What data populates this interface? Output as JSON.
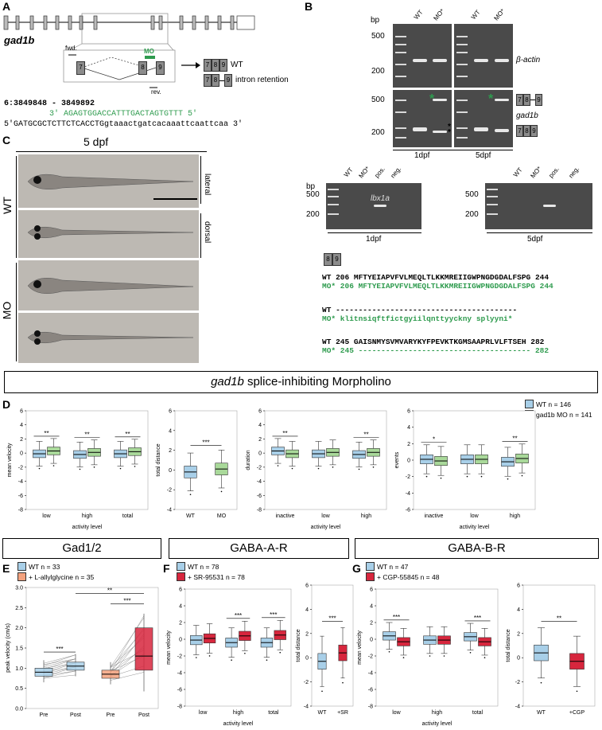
{
  "panels": {
    "A": "A",
    "B": "B",
    "C": "C",
    "D": "D",
    "E": "E",
    "F": "F",
    "G": "G"
  },
  "panelA": {
    "gene": "gad1b",
    "fwd": "fwd.",
    "rev": "rev.",
    "mo": "MO",
    "exon7": "7",
    "exon8": "8",
    "exon9": "9",
    "wt_label": "WT",
    "intron_label": "intron retention",
    "coords": "6:3849848 - 3849892",
    "mo_seq": "3' AGAGTGGACCATTTGACTAGTGTTT 5'",
    "genomic_seq": "5'GATGCGCTCTTCTCACCTGgtaaactgatcacaaattcaattcaa 3'"
  },
  "panelB": {
    "bp": "bp",
    "lanes": [
      "WT",
      "MO*",
      "WT",
      "MO*"
    ],
    "ladder_marks": [
      "500",
      "200",
      "500",
      "200"
    ],
    "beta_actin": "β-actin",
    "gad1b": "gad1b",
    "day1": "1dpf",
    "day5": "5dpf",
    "lanes2": [
      "WT",
      "MO*",
      "pos.",
      "neg."
    ],
    "lbx1a": "lbx1a",
    "ladder2": [
      "500",
      "200"
    ],
    "seq_wt1": "WT 206 MFTYEIAPVFVLMEQLTLKKMREIIGWPNGDGDALFSPG 244",
    "seq_mo1": "MO* 206 MFTYEIAPVFVLMEQLTLKKMREIIGWPNGDGDALFSPG 244",
    "seq_wt2": "WT ----------------------------------------",
    "seq_mo2": "MO* klitnsiqftfictgyiilqnttyyckny splyyni*",
    "seq_wt3": "WT 245 GAISNMYSVMVARYKYFPEVKTKGMSAAPRLVLFTSEH 282",
    "seq_mo3": "MO* 245 -------------------------------------- 282"
  },
  "panelC": {
    "title": "5 dpf",
    "lateral": "lateral",
    "dorsal": "dorsal",
    "wt": "WT",
    "mo": "MO"
  },
  "banner": "gad1b splice-inhibiting Morpholino",
  "banner_italic": "gad1b",
  "banner_rest": " splice-inhibiting Morpholino",
  "legendD": {
    "wt": "WT n = 146",
    "mo": "gad1b MO n = 141",
    "wt_color": "#a8cfe8",
    "mo_color": "#a9d99a"
  },
  "colors": {
    "wt_blue": "#a8cfe8",
    "mo_green": "#a9d99a",
    "red": "#d7263d",
    "salmon": "#f4a27e",
    "line_blue": "#2a7ab0"
  },
  "panelE_title": "Gad1/2",
  "panelF_title": "GABA-A-R",
  "panelG_title": "GABA-B-R",
  "legendE": {
    "a": "WT n = 33",
    "b": "+ L-allylglycine n = 35"
  },
  "legendF": {
    "a": "WT n = 78",
    "b": "+ SR-95531 n = 78"
  },
  "legendG": {
    "a": "WT n = 47",
    "b": "+ CGP-55845 n = 48"
  },
  "chart_data": [
    {
      "type": "box",
      "panel": "D1",
      "ylabel": "mean velocity",
      "xlabel": "activity level",
      "categories": [
        "low",
        "high",
        "total"
      ],
      "ylim": [
        -8,
        6
      ],
      "sig": [
        "**",
        "**",
        "**"
      ],
      "series": [
        {
          "name": "WT",
          "medians": [
            -0.1,
            -0.2,
            -0.1
          ]
        },
        {
          "name": "gad1b MO",
          "medians": [
            0.3,
            0.1,
            0.2
          ]
        }
      ]
    },
    {
      "type": "box",
      "panel": "D2",
      "ylabel": "total distance",
      "categories": [
        "WT",
        "MO"
      ],
      "ylim": [
        -4,
        6
      ],
      "sig": [
        "***"
      ],
      "medians": [
        -0.2,
        0.1
      ]
    },
    {
      "type": "box",
      "panel": "D3",
      "ylabel": "duration",
      "xlabel": "activity level",
      "categories": [
        "inactive",
        "low",
        "high"
      ],
      "ylim": [
        -8,
        6
      ],
      "sig": [
        "**",
        "",
        "**"
      ],
      "series": [
        {
          "name": "WT",
          "medians": [
            0.3,
            -0.1,
            -0.2
          ]
        },
        {
          "name": "gad1b MO",
          "medians": [
            -0.1,
            0.1,
            0.1
          ]
        }
      ]
    },
    {
      "type": "box",
      "panel": "D4",
      "ylabel": "events",
      "xlabel": "activity level",
      "categories": [
        "inactive",
        "low",
        "high"
      ],
      "ylim": [
        -6,
        6
      ],
      "sig": [
        "*",
        "",
        "**"
      ],
      "series": [
        {
          "name": "WT",
          "medians": [
            0.1,
            0.1,
            -0.2
          ]
        },
        {
          "name": "gad1b MO",
          "medians": [
            -0.1,
            0.1,
            0.2
          ]
        }
      ]
    },
    {
      "type": "box",
      "panel": "E",
      "ylabel": "peak velocity (cm/s)",
      "categories": [
        "Pre",
        "Post",
        "Pre",
        "Post"
      ],
      "ylim": [
        0,
        3
      ],
      "sig": [
        "***",
        "***",
        "**"
      ],
      "medians": [
        0.9,
        1.05,
        0.85,
        1.3
      ]
    },
    {
      "type": "box",
      "panel": "F1",
      "ylabel": "mean velocity",
      "xlabel": "activity level",
      "categories": [
        "low",
        "high",
        "total"
      ],
      "ylim": [
        -8,
        6
      ],
      "sig": [
        "",
        "***",
        "***"
      ],
      "series": [
        {
          "name": "WT",
          "medians": [
            -0.1,
            -0.4,
            -0.4
          ]
        },
        {
          "name": "+ SR-95531",
          "medians": [
            0.1,
            0.4,
            0.5
          ]
        }
      ]
    },
    {
      "type": "box",
      "panel": "F2",
      "ylabel": "total distance",
      "categories": [
        "WT",
        "+SR"
      ],
      "ylim": [
        -4,
        6
      ],
      "sig": [
        "***"
      ],
      "medians": [
        -0.3,
        0.4
      ]
    },
    {
      "type": "box",
      "panel": "G1",
      "ylabel": "mean velocity",
      "xlabel": "activity level",
      "categories": [
        "low",
        "high",
        "total"
      ],
      "ylim": [
        -8,
        6
      ],
      "sig": [
        "***",
        "",
        "***"
      ],
      "series": [
        {
          "name": "WT",
          "medians": [
            0.4,
            -0.1,
            0.3
          ]
        },
        {
          "name": "+ CGP-55845",
          "medians": [
            -0.3,
            -0.1,
            -0.3
          ]
        }
      ]
    },
    {
      "type": "box",
      "panel": "G2",
      "ylabel": "total distance",
      "categories": [
        "WT",
        "+CGP"
      ],
      "ylim": [
        -4,
        6
      ],
      "sig": [
        "**"
      ],
      "medians": [
        0.4,
        -0.3
      ]
    }
  ]
}
